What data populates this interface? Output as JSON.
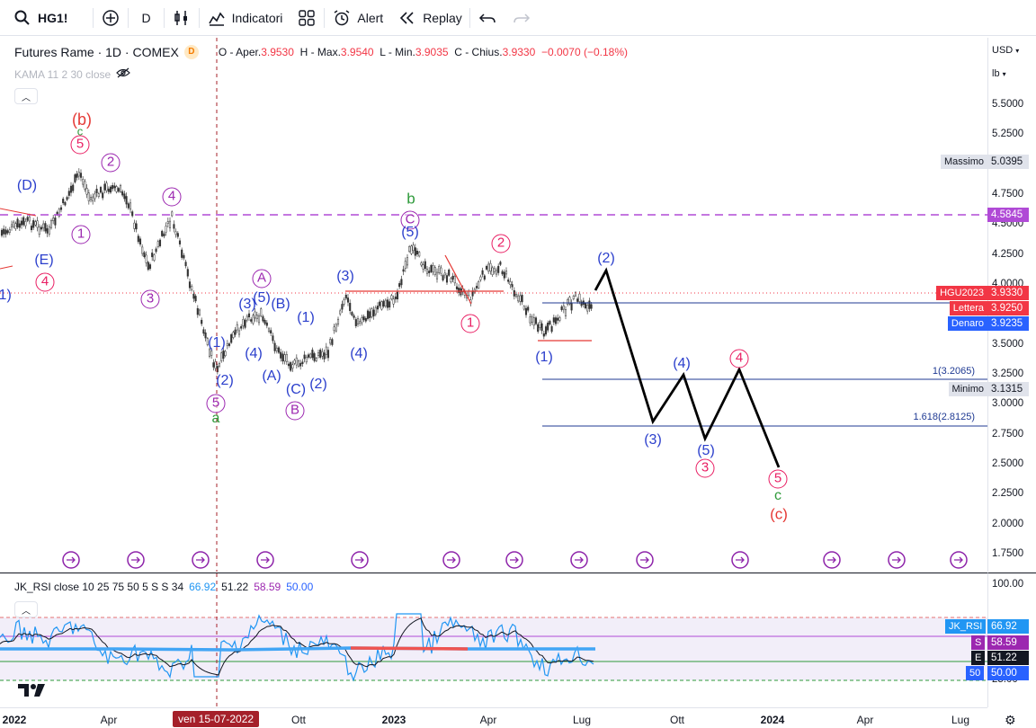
{
  "toolbar": {
    "symbol": "HG1!",
    "interval": "D",
    "indicators_label": "Indicatori",
    "alert_label": "Alert",
    "replay_label": "Replay"
  },
  "legend": {
    "title": "Futures Rame · 1D · COMEX",
    "badge": "D",
    "open_label": "O - Aper.",
    "open": "3.9530",
    "high_label": "H - Max.",
    "high": "3.9540",
    "low_label": "L - Min.",
    "low": "3.9035",
    "close_label": "C - Chius.",
    "close": "3.9330",
    "change": "−0.0070 (−0.18%)",
    "kama": "KAMA 11 2 30 close"
  },
  "price_axis": {
    "currency": "USD",
    "unit": "lb",
    "ticks": [
      "5.5000",
      "5.2500",
      "4.7500",
      "4.5000",
      "4.2500",
      "4.0000",
      "3.5000",
      "3.2500",
      "3.0000",
      "2.7500",
      "2.5000",
      "2.2500",
      "2.0000",
      "1.7500"
    ],
    "massimo_label": "Massimo",
    "massimo_value": "5.0395",
    "dashed_level": "4.5845",
    "contract_label": "HGU2023",
    "contract_value": "3.9330",
    "lettera_label": "Lettera",
    "lettera_value": "3.9250",
    "denaro_label": "Denaro",
    "denaro_value": "3.9235",
    "fib1_label": "1(3.2065)",
    "minimo_label": "Minimo",
    "minimo_value": "3.1315",
    "fib2_label": "1.618(2.8125)"
  },
  "rsi": {
    "legend_name": "JK_RSI close 10 25 75 50 5 S S 34",
    "v1": "66.92",
    "v2": "51.22",
    "v3": "58.59",
    "v4": "50.00",
    "ticks": [
      "100.00",
      "25.00"
    ],
    "tag_rsi": "JK_RSI",
    "tag_rsi_value": "66.92",
    "tag_s": "S",
    "tag_s_value": "58.59",
    "tag_e": "E",
    "tag_e_value": "51.22",
    "tag_50": "50",
    "tag_50_value": "50.00"
  },
  "time_axis": {
    "labels": [
      "2022",
      "Apr",
      "Ott",
      "2023",
      "Apr",
      "Lug",
      "Ott",
      "2024",
      "Apr",
      "Lug"
    ],
    "cursor": "ven 15-07-2022"
  },
  "waves": {
    "D_upper": "(D)",
    "E": "(E)",
    "b_red": "(b)",
    "c_small": "c",
    "five": "5",
    "two": "2",
    "four": "4",
    "one": "1",
    "three": "3",
    "A": "A",
    "B": "B",
    "C": "C",
    "p1": "(1)",
    "p2": "(2)",
    "p3": "(3)",
    "p4": "(4)",
    "p5": "(5)",
    "pA": "(A)",
    "pB": "(B)",
    "pC": "(C)",
    "a_green": "a",
    "b_green": "b",
    "c_green": "c",
    "c_red": "(c)"
  },
  "colors": {
    "accent_blue": "#2962ff",
    "bear_red": "#f23645",
    "wave_blue": "#2b3fcc",
    "wave_purple": "#9c27b0",
    "wave_pink": "#e91e63",
    "wave_green": "#2e9a3a",
    "dashed_purple": "#b04ad6"
  }
}
